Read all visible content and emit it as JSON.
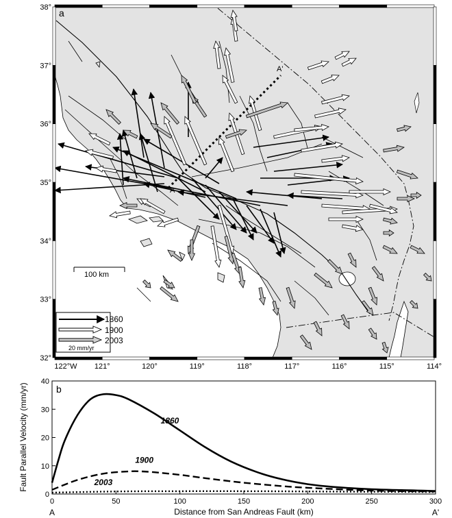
{
  "map": {
    "panel_label": "a",
    "lat_ticks": [
      {
        "value": 38,
        "label": "38°"
      },
      {
        "value": 37,
        "label": "37°"
      },
      {
        "value": 36,
        "label": "36°"
      },
      {
        "value": 35,
        "label": "35°"
      },
      {
        "value": 34,
        "label": "34°"
      },
      {
        "value": 33,
        "label": "33°"
      },
      {
        "value": 32,
        "label": "32°"
      }
    ],
    "lon_ticks": [
      {
        "value": -122,
        "label": "122°W"
      },
      {
        "value": -121,
        "label": "121°"
      },
      {
        "value": -120,
        "label": "120°"
      },
      {
        "value": -119,
        "label": "119°"
      },
      {
        "value": -118,
        "label": "118°"
      },
      {
        "value": -117,
        "label": "117°"
      },
      {
        "value": -116,
        "label": "116°"
      },
      {
        "value": -115,
        "label": "115°"
      },
      {
        "value": -114,
        "label": "114°"
      }
    ],
    "scale_bar_label": "100 km",
    "profile_start_label": "A",
    "profile_end_label": "A'",
    "legend": {
      "items": [
        {
          "label": "1860",
          "style": "solid-black"
        },
        {
          "label": "1900",
          "style": "outline"
        },
        {
          "label": "2003",
          "style": "gray-outline"
        }
      ],
      "scale_label": "20 mm/yr"
    },
    "colors": {
      "land": "#e3e3e3",
      "sea": "#ffffff",
      "arrow_1860": "#000000",
      "arrow_2003": "#bdbdbd"
    }
  },
  "chart_data": {
    "type": "line",
    "panel_label": "b",
    "xlabel": "Distance from San Andreas Fault (km)",
    "ylabel": "Fault Parallel Velocity (mm/yr)",
    "xlim": [
      0,
      300
    ],
    "ylim": [
      0,
      40
    ],
    "x_ticks": [
      0,
      50,
      100,
      150,
      200,
      250,
      300
    ],
    "y_ticks": [
      0,
      10,
      20,
      30,
      40
    ],
    "x_end_labels": {
      "start": "A",
      "end": "A'"
    },
    "series": [
      {
        "name": "1860",
        "style": "solid",
        "x": [
          0,
          5,
          10,
          20,
          30,
          40,
          50,
          60,
          80,
          100,
          120,
          140,
          160,
          180,
          200,
          220,
          250,
          280,
          300
        ],
        "y": [
          4,
          12,
          19,
          28,
          33.5,
          35.3,
          35,
          33.5,
          28.5,
          22.5,
          16.5,
          11.5,
          7.8,
          5.2,
          3.5,
          2.5,
          1.7,
          1.3,
          1.1
        ]
      },
      {
        "name": "1900",
        "style": "dashed",
        "x": [
          0,
          20,
          40,
          60,
          70,
          80,
          100,
          120,
          150,
          180,
          200,
          250,
          300
        ],
        "y": [
          1.5,
          5,
          7.2,
          8,
          8,
          7.7,
          6.8,
          5.6,
          4,
          2.8,
          2.2,
          1.2,
          0.9
        ]
      },
      {
        "name": "2003",
        "style": "dotted",
        "x": [
          0,
          50,
          100,
          150,
          200,
          250,
          300
        ],
        "y": [
          0.5,
          0.9,
          1.0,
          1.0,
          0.9,
          0.8,
          0.7
        ]
      }
    ]
  }
}
